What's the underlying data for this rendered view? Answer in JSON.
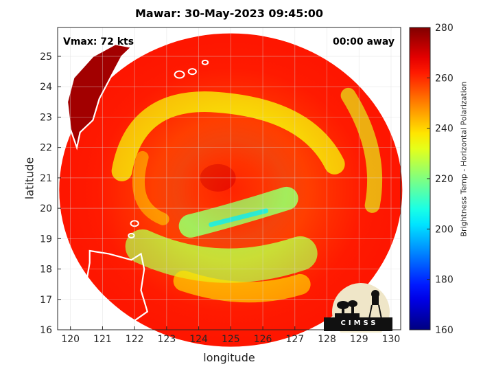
{
  "chart_data": {
    "type": "heatmap",
    "title": "Mawar: 30-May-2023 09:45:00",
    "xlabel": "longitude",
    "ylabel": "latitude",
    "xlim": [
      119.6,
      130.3
    ],
    "ylim": [
      16.0,
      25.95
    ],
    "xticks": [
      120,
      121,
      122,
      123,
      124,
      125,
      126,
      127,
      128,
      129,
      130
    ],
    "yticks": [
      16,
      17,
      18,
      19,
      20,
      21,
      22,
      23,
      24,
      25
    ],
    "grid": true,
    "colorbar": {
      "label": "Brightness Temp - Horizontal Polarization",
      "range": [
        160,
        280
      ],
      "ticks": [
        160,
        180,
        200,
        220,
        240,
        260,
        280
      ],
      "colormap": "jet"
    },
    "annotations": {
      "vmax": "Vmax: 72 kts",
      "time_away": "00:00 away"
    },
    "storm_center": {
      "lon": 124.6,
      "lat": 21.0
    },
    "swath_center": {
      "lon": 125.0,
      "lat": 20.6
    }
  },
  "logo_text": "CIMSS",
  "colors": {
    "background": "#ffffff",
    "coastline": "#ffffff",
    "grid": "#d9d9d9"
  }
}
